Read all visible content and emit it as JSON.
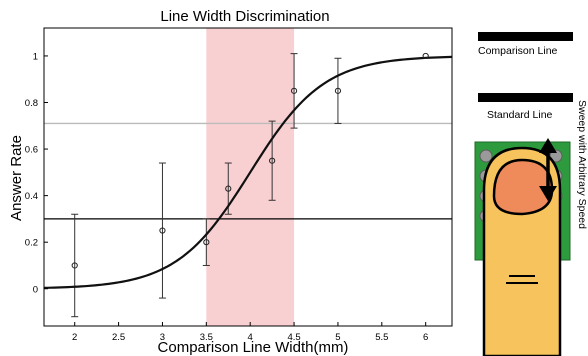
{
  "chart_data": {
    "type": "scatter",
    "title": "Line Width Discrimination",
    "xlabel": "Comparison Line Width(mm)",
    "ylabel": "Answer Rate",
    "xlim": [
      1.65,
      6.3
    ],
    "ylim": [
      -0.16,
      1.12
    ],
    "x_ticks": [
      2,
      2.5,
      3,
      3.5,
      4,
      4.5,
      5,
      5.5,
      6
    ],
    "x_tick_labels": [
      "2",
      "2.5",
      "3",
      "3.5",
      "4",
      "4.5",
      "5",
      "5.5",
      "6"
    ],
    "y_ticks": [
      0,
      0.2,
      0.4,
      0.6,
      0.8,
      1
    ],
    "y_tick_labels": [
      "0",
      "0.2",
      "0.4",
      "0.6",
      "0.8",
      "1"
    ],
    "grid": false,
    "highlight_band": {
      "x_start": 3.5,
      "x_end": 4.5,
      "color": "#f9d0d2"
    },
    "reference_lines": [
      {
        "y": 0.3,
        "color": "#000000"
      },
      {
        "y": 0.71,
        "color": "#bbbbbb"
      }
    ],
    "fit_curve": {
      "center": 4.0,
      "scale": 0.42
    },
    "points": [
      {
        "x": 2.0,
        "y": 0.1,
        "err_low": 0.22,
        "err_high": 0.22
      },
      {
        "x": 3.0,
        "y": 0.25,
        "err_low": 0.29,
        "err_high": 0.29
      },
      {
        "x": 3.5,
        "y": 0.2,
        "err_low": 0.1,
        "err_high": 0.1
      },
      {
        "x": 3.75,
        "y": 0.43,
        "err_low": 0.11,
        "err_high": 0.11
      },
      {
        "x": 4.25,
        "y": 0.55,
        "err_low": 0.17,
        "err_high": 0.17
      },
      {
        "x": 4.5,
        "y": 0.85,
        "err_low": 0.16,
        "err_high": 0.16
      },
      {
        "x": 5.0,
        "y": 0.85,
        "err_low": 0.14,
        "err_high": 0.14
      },
      {
        "x": 6.0,
        "y": 1.0,
        "err_low": 0.0,
        "err_high": 0.0
      }
    ]
  },
  "illustration": {
    "comparison_label": "Comparison Line",
    "standard_label": "Standard Line",
    "sweep_label": "Sweep with Arbitrary Speed",
    "board_color": "#2e9a3e",
    "finger_color": "#f7c35c",
    "nail_color": "#ef8a5a"
  }
}
